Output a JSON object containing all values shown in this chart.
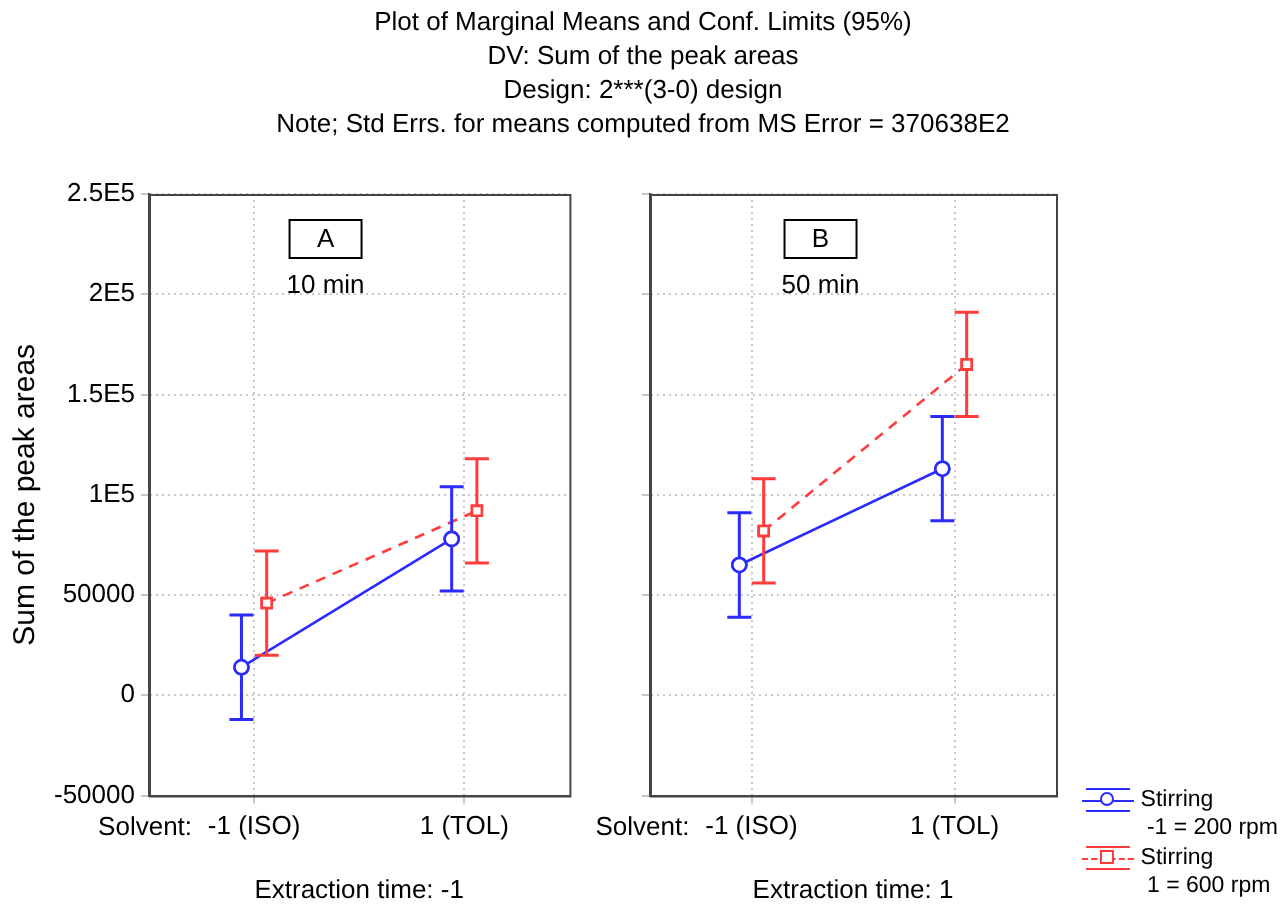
{
  "chart_data": [
    {
      "type": "line",
      "title": "Plot of Marginal Means and Conf. Limits (95%)",
      "subtitle": "DV: Sum of the peak areas\nDesign: 2***(3-0) design\nNote; Std Errs. for means computed from MS Error = 370638E2",
      "xlabel": "Extraction time: -1",
      "ylabel": "Sum of the peak areas",
      "annotations": [
        "A",
        "10 min",
        "Solvent:"
      ],
      "categories": [
        "-1 (ISO)",
        "1 (TOL)"
      ],
      "series": [
        {
          "color": "#2b2bff",
          "values": [
            14000,
            78000
          ],
          "errors": [
            26000,
            26000
          ],
          "marker": "circle",
          "line_style": "solid"
        },
        {
          "color": "#ff3b3b",
          "values": [
            46000,
            92000
          ],
          "errors": [
            26000,
            26000
          ],
          "marker": "square",
          "line_style": "dashed"
        }
      ],
      "ylim": [
        -50000,
        250000
      ],
      "yticks": [
        {
          "value": -50000,
          "label": "-50000"
        },
        {
          "value": 0,
          "label": "0"
        },
        {
          "value": 50000,
          "label": "50000"
        },
        {
          "value": 100000,
          "label": "1E5"
        },
        {
          "value": 150000,
          "label": "1.5E5"
        },
        {
          "value": 200000,
          "label": "2E5"
        },
        {
          "value": 250000,
          "label": "2.5E5"
        }
      ],
      "grid": true
    },
    {
      "type": "line",
      "xlabel": "Extraction time: 1",
      "annotations": [
        "B",
        "50 min",
        "Solvent:"
      ],
      "categories": [
        "-1 (ISO)",
        "1 (TOL)"
      ],
      "series": [
        {
          "name": "Stirring\n -1 = 200 rpm",
          "color": "#2b2bff",
          "values": [
            65000,
            113000
          ],
          "errors": [
            26000,
            26000
          ],
          "marker": "circle",
          "line_style": "solid"
        },
        {
          "name": "Stirring\n 1 = 600 rpm",
          "color": "#ff3b3b",
          "values": [
            82000,
            165000
          ],
          "errors": [
            26000,
            26000
          ],
          "marker": "square",
          "line_style": "dashed"
        }
      ],
      "ylim": [
        -50000,
        250000
      ],
      "yticks": [
        {
          "value": -50000,
          "label": null
        },
        {
          "value": 0,
          "label": null
        },
        {
          "value": 50000,
          "label": null
        },
        {
          "value": 100000,
          "label": null
        },
        {
          "value": 150000,
          "label": null
        },
        {
          "value": 200000,
          "label": null
        },
        {
          "value": 250000,
          "label": null
        }
      ],
      "grid": true,
      "tick_labels": "x",
      "legend": "bottom right"
    }
  ]
}
